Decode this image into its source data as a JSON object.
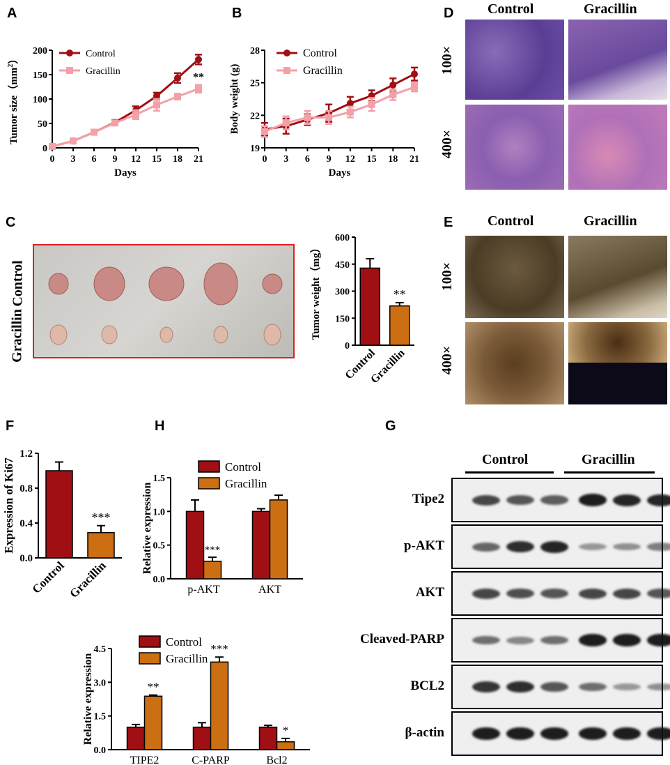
{
  "panels": {
    "A": "A",
    "B": "B",
    "C": "C",
    "D": "D",
    "E": "E",
    "F": "F",
    "G": "G",
    "H": "H"
  },
  "colors": {
    "control": "#a00f14",
    "gracillin_line": "#f4a0a8",
    "gracillin_bar": "#cc6e12"
  },
  "chart_data": [
    {
      "id": "A",
      "type": "line",
      "xlabel": "Days",
      "ylabel": "Tumor size（mm²）",
      "ylabel_main": "Tumor size（mm",
      "ylabel_sup": "2",
      "ylabel_end": "）",
      "xticks": [
        "0",
        "3",
        "6",
        "9",
        "12",
        "15",
        "18",
        "21"
      ],
      "yticks": [
        "0",
        "50",
        "100",
        "150",
        "200"
      ],
      "ylim": [
        0,
        200
      ],
      "x": [
        0,
        3,
        6,
        9,
        12,
        15,
        18,
        21
      ],
      "series": [
        {
          "name": "Control",
          "values": [
            3,
            14,
            32,
            52,
            77,
            106,
            143,
            181
          ],
          "err": [
            2,
            3,
            4,
            5,
            8,
            7,
            10,
            10
          ]
        },
        {
          "name": "Gracillin",
          "values": [
            3,
            14,
            32,
            51,
            68,
            88,
            105,
            121
          ],
          "err": [
            2,
            3,
            4,
            5,
            9,
            12,
            6,
            8
          ]
        }
      ],
      "annotation": "**"
    },
    {
      "id": "B",
      "type": "line",
      "xlabel": "Days",
      "ylabel": "Body weight (g)",
      "xticks": [
        "0",
        "3",
        "6",
        "9",
        "12",
        "15",
        "18",
        "21"
      ],
      "yticks": [
        "19",
        "22",
        "25",
        "28"
      ],
      "ylim": [
        19,
        28
      ],
      "x": [
        0,
        3,
        6,
        9,
        12,
        15,
        18,
        21
      ],
      "series": [
        {
          "name": "Control",
          "values": [
            20.7,
            21.0,
            21.6,
            22.2,
            23.1,
            23.8,
            24.8,
            25.8
          ],
          "err": [
            0.6,
            0.7,
            0.5,
            0.8,
            0.6,
            0.5,
            0.6,
            0.6
          ]
        },
        {
          "name": "Gracillin",
          "values": [
            20.5,
            21.3,
            21.8,
            21.8,
            22.3,
            23.0,
            23.9,
            24.6
          ],
          "err": [
            0.5,
            0.6,
            0.6,
            0.6,
            0.5,
            0.6,
            0.5,
            0.4
          ]
        }
      ]
    },
    {
      "id": "C",
      "type": "bar",
      "ylabel": "Tumor weight（mg）",
      "categories": [
        "Control",
        "Gracillin"
      ],
      "values": [
        428,
        218
      ],
      "err": [
        52,
        18
      ],
      "yticks": [
        "0",
        "150",
        "300",
        "450",
        "600"
      ],
      "ylim": [
        0,
        600
      ],
      "annotations": [
        "",
        "**"
      ]
    },
    {
      "id": "F",
      "type": "bar",
      "ylabel": "Expression of Ki67",
      "categories": [
        "Control",
        "Gracillin"
      ],
      "values": [
        1.0,
        0.29
      ],
      "err": [
        0.1,
        0.08
      ],
      "yticks": [
        "0.0",
        "0.4",
        "0.8",
        "1.2"
      ],
      "ylim": [
        0,
        1.2
      ],
      "annotations": [
        "",
        "***"
      ]
    },
    {
      "id": "H1",
      "type": "bar",
      "ylabel": "Relative expression",
      "categories": [
        "p-AKT",
        "AKT"
      ],
      "series": [
        {
          "name": "Control",
          "values": [
            1.0,
            1.0
          ],
          "err": [
            0.17,
            0.04
          ]
        },
        {
          "name": "Gracillin",
          "values": [
            0.26,
            1.17
          ],
          "err": [
            0.06,
            0.07
          ]
        }
      ],
      "yticks": [
        "0.0",
        "0.5",
        "1.0",
        "1.5"
      ],
      "ylim": [
        0,
        1.5
      ],
      "annotations": [
        "***",
        ""
      ]
    },
    {
      "id": "H2",
      "type": "bar",
      "ylabel": "Relative expression",
      "categories": [
        "TIPE2",
        "C-PARP",
        "Bcl2"
      ],
      "series": [
        {
          "name": "Control",
          "values": [
            1.0,
            1.0,
            1.0
          ],
          "err": [
            0.12,
            0.2,
            0.08
          ]
        },
        {
          "name": "Gracillin",
          "values": [
            2.38,
            3.9,
            0.35
          ],
          "err": [
            0.05,
            0.22,
            0.15
          ]
        }
      ],
      "yticks": [
        "0.0",
        "1.5",
        "3.0",
        "4.5"
      ],
      "ylim": [
        0,
        4.5
      ],
      "annotations": [
        "**",
        "***",
        "*"
      ]
    }
  ],
  "photo_C": {
    "rows": [
      "Control",
      "Gracillin"
    ]
  },
  "histology": {
    "columns": [
      "Control",
      "Gracillin"
    ],
    "rows": [
      "100×",
      "400×"
    ]
  },
  "western": {
    "groups": [
      "Control",
      "Gracillin"
    ],
    "bands": [
      "Tipe2",
      "p-AKT",
      "AKT",
      "Cleaved-PARP",
      "BCL2",
      "β-actin"
    ],
    "intensity": [
      [
        0.7,
        0.6,
        0.55,
        0.95,
        0.9,
        0.9
      ],
      [
        0.5,
        0.85,
        0.9,
        0.2,
        0.25,
        0.35
      ],
      [
        0.7,
        0.65,
        0.6,
        0.7,
        0.7,
        0.6
      ],
      [
        0.45,
        0.3,
        0.45,
        0.95,
        0.95,
        0.95
      ],
      [
        0.8,
        0.85,
        0.6,
        0.45,
        0.2,
        0.25
      ],
      [
        0.95,
        0.95,
        0.95,
        0.95,
        0.95,
        0.95
      ]
    ]
  }
}
